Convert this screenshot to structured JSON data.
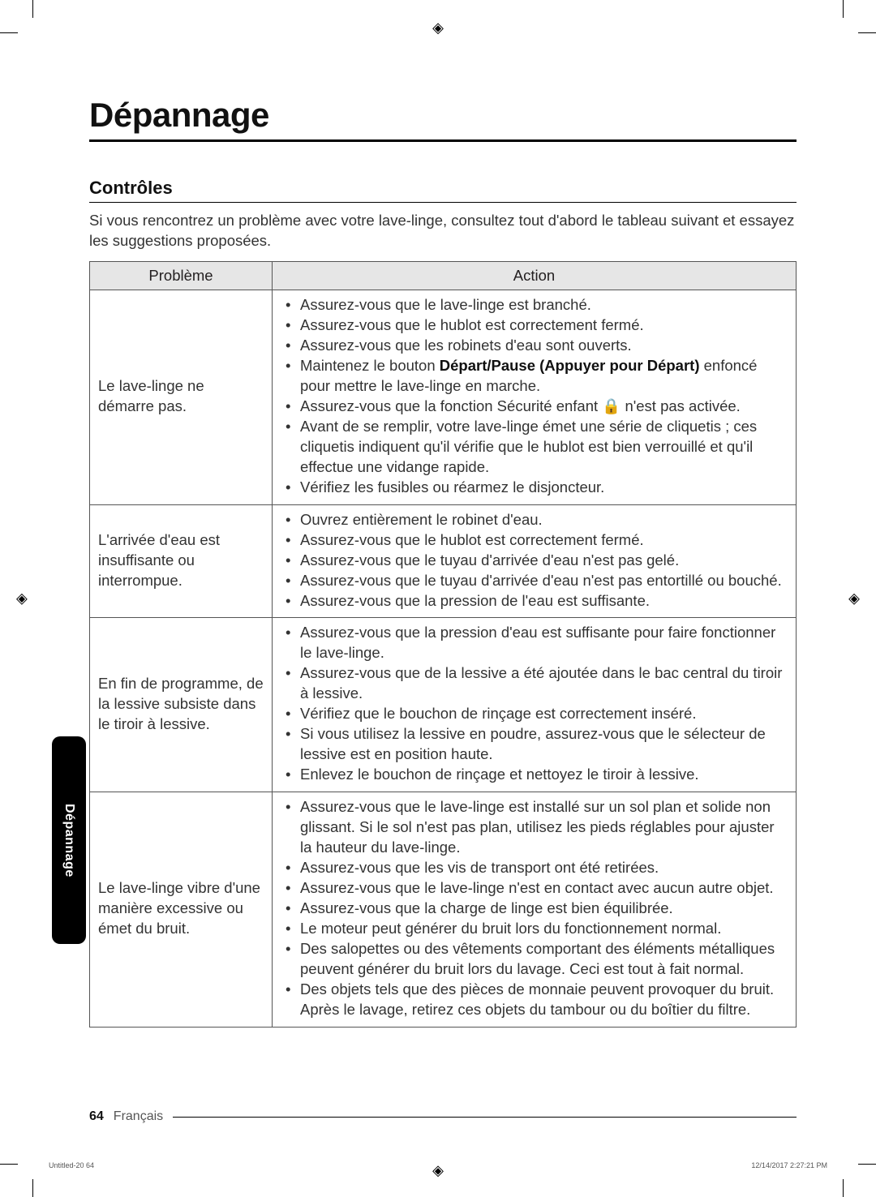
{
  "cropmark_glyph": "◈",
  "title": "Dépannage",
  "section": "Contrôles",
  "intro": "Si vous rencontrez un problème avec votre lave-linge, consultez tout d'abord le tableau suivant et essayez les suggestions proposées.",
  "col_problem": "Problème",
  "col_action": "Action",
  "sidetab": "Dépannage",
  "page_number": "64",
  "language": "Français",
  "tiny_left": "Untitled-20   64",
  "tiny_right": "12/14/2017   2:27:21 PM",
  "rows": [
    {
      "problem": "Le lave-linge ne démarre pas.",
      "actions": [
        {
          "t": "Assurez-vous que le lave-linge est branché."
        },
        {
          "t": "Assurez-vous que le hublot est correctement fermé."
        },
        {
          "t": "Assurez-vous que les robinets d'eau sont ouverts."
        },
        {
          "pre": "Maintenez le bouton ",
          "bold": "Départ/Pause (Appuyer pour Départ)",
          "post": " enfoncé pour mettre le lave-linge en marche."
        },
        {
          "t": "Assurez-vous que la fonction Sécurité enfant 🔒 n'est pas activée."
        },
        {
          "t": "Avant de se remplir, votre lave-linge émet une série de cliquetis ; ces cliquetis indiquent qu'il vérifie que le hublot est bien verrouillé et qu'il effectue une vidange rapide."
        },
        {
          "t": "Vérifiez les fusibles ou réarmez le disjoncteur."
        }
      ]
    },
    {
      "problem": "L'arrivée d'eau est insuffisante ou interrompue.",
      "actions": [
        {
          "t": "Ouvrez entièrement le robinet d'eau."
        },
        {
          "t": "Assurez-vous que le hublot est correctement fermé."
        },
        {
          "t": "Assurez-vous que le tuyau d'arrivée d'eau n'est pas gelé."
        },
        {
          "t": "Assurez-vous que le tuyau d'arrivée d'eau n'est pas entortillé ou bouché."
        },
        {
          "t": "Assurez-vous que la pression de l'eau est suffisante."
        }
      ]
    },
    {
      "problem": "En fin de programme, de la lessive subsiste dans le tiroir à lessive.",
      "actions": [
        {
          "t": "Assurez-vous que la pression d'eau est suffisante pour faire fonctionner le lave-linge."
        },
        {
          "t": "Assurez-vous que de la lessive a été ajoutée dans le bac central du tiroir à lessive."
        },
        {
          "t": "Vérifiez que le bouchon de rinçage est correctement inséré."
        },
        {
          "t": "Si vous utilisez la lessive en poudre, assurez-vous que le sélecteur de lessive est en position haute."
        },
        {
          "t": "Enlevez le bouchon de rinçage et nettoyez le tiroir à lessive."
        }
      ]
    },
    {
      "problem": "Le lave-linge vibre d'une manière excessive ou émet du bruit.",
      "actions": [
        {
          "t": "Assurez-vous que le lave-linge est installé sur un sol plan et solide non glissant. Si le sol n'est pas plan, utilisez les pieds réglables pour ajuster la hauteur du lave-linge."
        },
        {
          "t": "Assurez-vous que les vis de transport ont été retirées."
        },
        {
          "t": "Assurez-vous que le lave-linge n'est en contact avec aucun autre objet."
        },
        {
          "t": "Assurez-vous que la charge de linge est bien équilibrée."
        },
        {
          "t": "Le moteur peut générer du bruit lors du fonctionnement normal."
        },
        {
          "t": "Des salopettes ou des vêtements comportant des éléments métalliques peuvent générer du bruit lors du lavage. Ceci est tout à fait normal."
        },
        {
          "t": "Des objets tels que des pièces de monnaie peuvent provoquer du bruit. Après le lavage, retirez ces objets du tambour ou du boîtier du filtre."
        }
      ]
    }
  ]
}
